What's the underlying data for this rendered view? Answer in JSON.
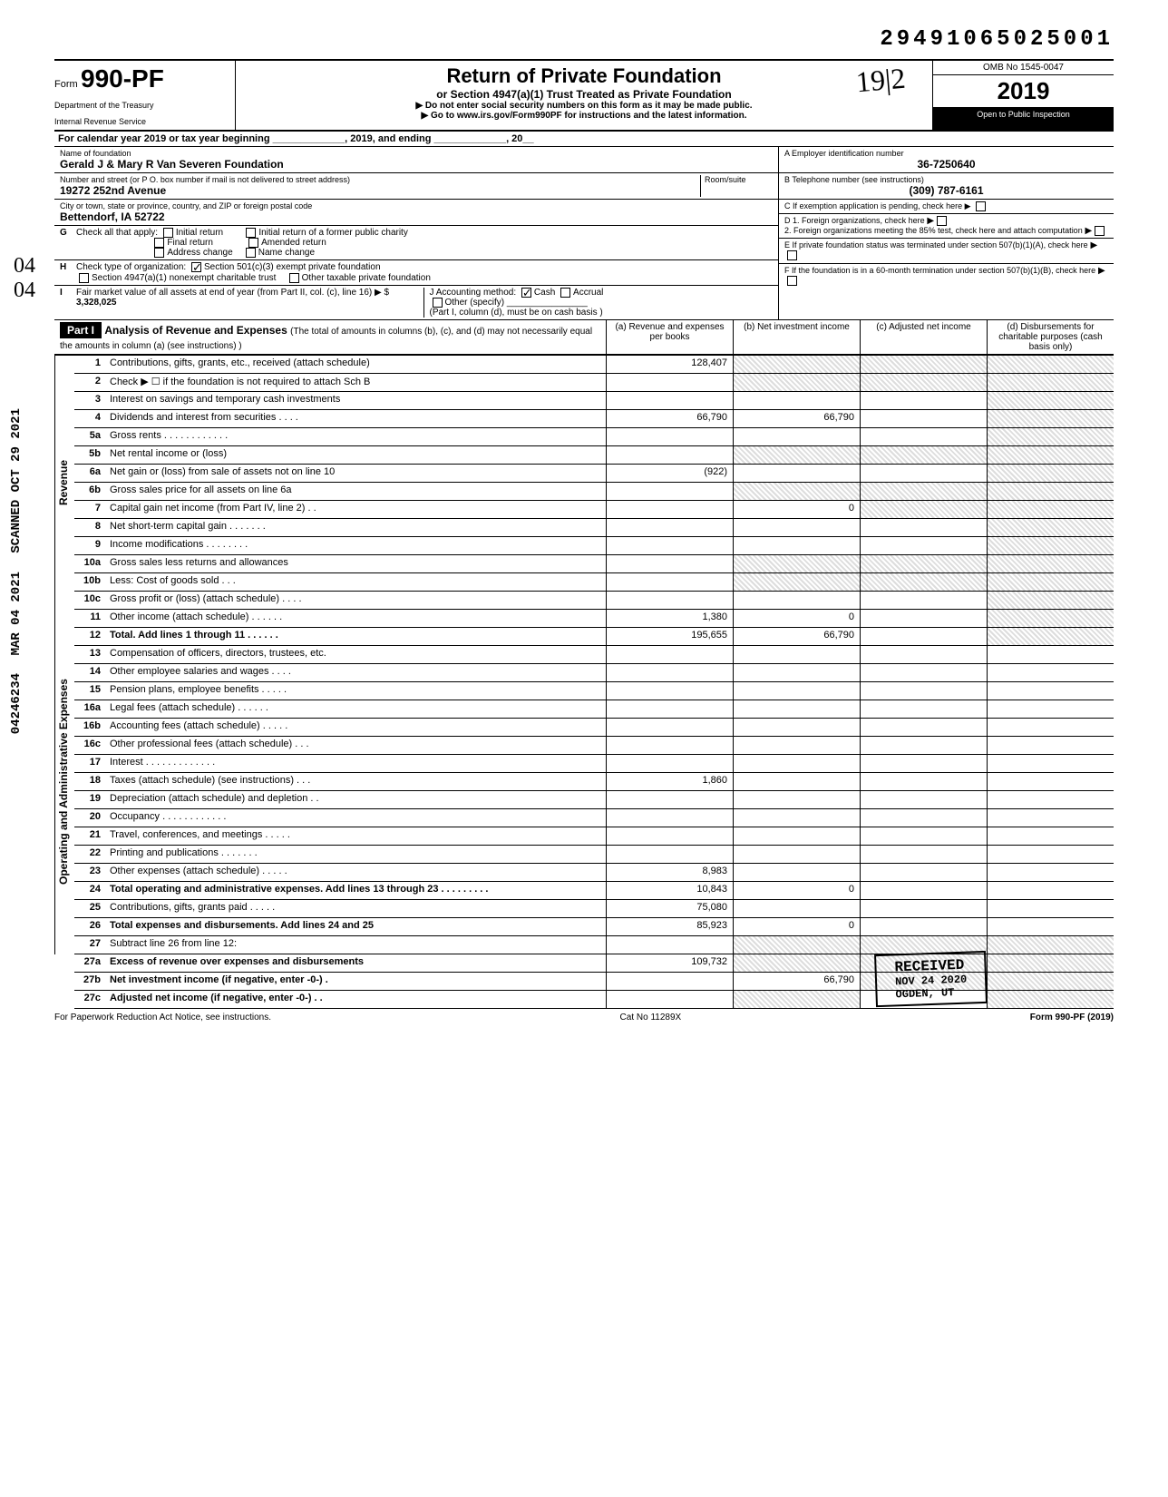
{
  "doc_number": "29491065025001",
  "form": {
    "prefix": "Form",
    "number": "990-PF",
    "dept1": "Department of the Treasury",
    "dept2": "Internal Revenue Service"
  },
  "header": {
    "title": "Return of Private Foundation",
    "subtitle": "or Section 4947(a)(1) Trust Treated as Private Foundation",
    "instr1": "▶ Do not enter social security numbers on this form as it may be made public.",
    "instr2": "▶ Go to www.irs.gov/Form990PF for instructions and the latest information.",
    "omb": "OMB No 1545-0047",
    "year_prefix": "20",
    "year_bold": "19",
    "inspection": "Open to Public Inspection"
  },
  "calendar": "For calendar year 2019 or tax year beginning _____________, 2019, and ending _____________, 20__",
  "foundation": {
    "name_label": "Name of foundation",
    "name": "Gerald J & Mary R Van Severen Foundation",
    "addr_label": "Number and street (or P O. box number if mail is not delivered to street address)",
    "room_label": "Room/suite",
    "address": "19272 252nd Avenue",
    "city_label": "City or town, state or province, country, and ZIP or foreign postal code",
    "city": "Bettendorf, IA 52722"
  },
  "right_info": {
    "a_label": "A  Employer identification number",
    "ein": "36-7250640",
    "b_label": "B  Telephone number (see instructions)",
    "phone": "(309) 787-6161",
    "c_label": "C  If exemption application is pending, check here ▶",
    "d1": "D  1. Foreign organizations, check here",
    "d2": "2. Foreign organizations meeting the 85% test, check here and attach computation",
    "e_label": "E  If private foundation status was terminated under section 507(b)(1)(A), check here",
    "f_label": "F  If the foundation is in a 60-month termination under section 507(b)(1)(B), check here"
  },
  "checks": {
    "g_label": "Check all that apply:",
    "initial": "Initial return",
    "initial_former": "Initial return of a former public charity",
    "final": "Final return",
    "amended": "Amended return",
    "addr_change": "Address change",
    "name_change": "Name change",
    "h_label": "Check type of organization:",
    "h_501": "Section 501(c)(3) exempt private foundation",
    "h_4947": "Section 4947(a)(1) nonexempt charitable trust",
    "h_other": "Other taxable private foundation",
    "i_label": "Fair market value of all assets at end of year (from Part II, col. (c), line 16) ▶ $",
    "i_value": "3,328,025",
    "j_label": "J  Accounting method:",
    "j_cash": "Cash",
    "j_accrual": "Accrual",
    "j_other": "Other (specify)",
    "j_note": "(Part I, column (d), must be on cash basis )"
  },
  "part1": {
    "label": "Part I",
    "title": "Analysis of Revenue and Expenses",
    "note": "(The total of amounts in columns (b), (c), and (d) may not necessarily equal the amounts in column (a) (see instructions) )",
    "col_a": "(a) Revenue and expenses per books",
    "col_b": "(b) Net investment income",
    "col_c": "(c) Adjusted net income",
    "col_d": "(d) Disbursements for charitable purposes (cash basis only)"
  },
  "sections": {
    "revenue": "Revenue",
    "expenses": "Operating and Administrative Expenses"
  },
  "lines": {
    "1": {
      "desc": "Contributions, gifts, grants, etc., received (attach schedule)",
      "a": "128,407"
    },
    "2": {
      "desc": "Check ▶ ☐ if the foundation is not required to attach Sch B"
    },
    "3": {
      "desc": "Interest on savings and temporary cash investments"
    },
    "4": {
      "desc": "Dividends and interest from securities  .  .  .  .",
      "a": "66,790",
      "b": "66,790"
    },
    "5a": {
      "desc": "Gross rents  .  .  .  .  .  .  .  .  .  .  .  ."
    },
    "5b": {
      "desc": "Net rental income or (loss)"
    },
    "6a": {
      "desc": "Net gain or (loss) from sale of assets not on line 10",
      "a": "(922)"
    },
    "6b": {
      "desc": "Gross sales price for all assets on line 6a"
    },
    "7": {
      "desc": "Capital gain net income (from Part IV, line 2)  .  .",
      "b": "0"
    },
    "8": {
      "desc": "Net short-term capital gain  .  .  .  .  .  .  ."
    },
    "9": {
      "desc": "Income modifications  .  .  .  .  .  .  .  ."
    },
    "10a": {
      "desc": "Gross sales less returns and allowances"
    },
    "10b": {
      "desc": "Less: Cost of goods sold  .  .  ."
    },
    "10c": {
      "desc": "Gross profit or (loss) (attach schedule)  .  .  .  ."
    },
    "11": {
      "desc": "Other income (attach schedule)  .  .  .  .  .  .",
      "a": "1,380",
      "b": "0"
    },
    "12": {
      "desc": "Total. Add lines 1 through 11  .  .  .  .  .  .",
      "a": "195,655",
      "b": "66,790"
    },
    "13": {
      "desc": "Compensation of officers, directors, trustees, etc."
    },
    "14": {
      "desc": "Other employee salaries and wages  .  .  .  ."
    },
    "15": {
      "desc": "Pension plans, employee benefits  .  .  .  .  ."
    },
    "16a": {
      "desc": "Legal fees (attach schedule)  .  .  .  .  .  ."
    },
    "16b": {
      "desc": "Accounting fees (attach schedule)  .  .  .  .  ."
    },
    "16c": {
      "desc": "Other professional fees (attach schedule)  .  .  ."
    },
    "17": {
      "desc": "Interest  .  .  .  .  .  .  .  .  .  .  .  .  ."
    },
    "18": {
      "desc": "Taxes (attach schedule) (see instructions)  .  .  .",
      "a": "1,860"
    },
    "19": {
      "desc": "Depreciation (attach schedule) and depletion  .  ."
    },
    "20": {
      "desc": "Occupancy  .  .  .  .  .  .  .  .  .  .  .  ."
    },
    "21": {
      "desc": "Travel, conferences, and meetings  .  .  .  .  ."
    },
    "22": {
      "desc": "Printing and publications  .  .  .  .  .  .  ."
    },
    "23": {
      "desc": "Other expenses (attach schedule)  .  .  .  .  .",
      "a": "8,983"
    },
    "24": {
      "desc": "Total operating and administrative expenses. Add lines 13 through 23  .  .  .  .  .  .  .  .  .",
      "a": "10,843",
      "b": "0"
    },
    "25": {
      "desc": "Contributions, gifts, grants paid  .  .  .  .  .",
      "a": "75,080"
    },
    "26": {
      "desc": "Total expenses and disbursements. Add lines 24 and 25",
      "a": "85,923",
      "b": "0"
    },
    "27": {
      "desc": "Subtract line 26 from line 12:"
    },
    "27a": {
      "desc": "Excess of revenue over expenses and disbursements",
      "a": "109,732"
    },
    "27b": {
      "desc": "Net investment income (if negative, enter -0-)  .",
      "b": "66,790"
    },
    "27c": {
      "desc": "Adjusted net income (if negative, enter -0-)  .  ."
    }
  },
  "stamps": {
    "scanned": "SCANNED OCT 29 2021",
    "date2": "MAR 04 2021",
    "filenum": "04246234",
    "received": "RECEIVED",
    "received_date": "NOV 24 2020",
    "received_loc": "OGDEN, UT"
  },
  "footer": {
    "left": "For Paperwork Reduction Act Notice, see instructions.",
    "center": "Cat No 11289X",
    "right": "Form 990-PF (2019)"
  }
}
